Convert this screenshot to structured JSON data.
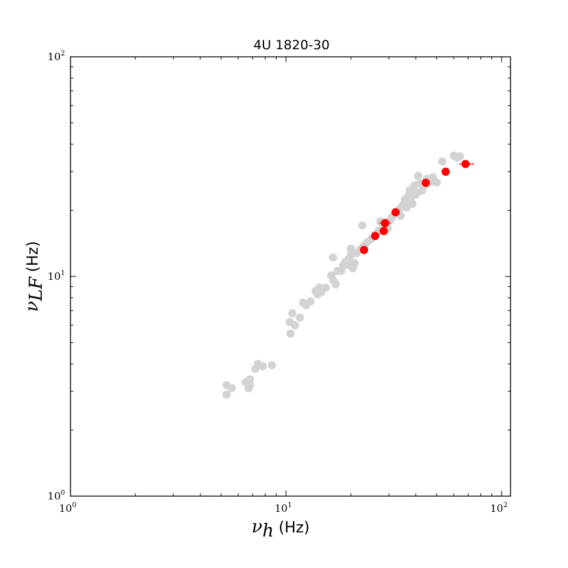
{
  "chart_data": {
    "type": "scatter",
    "title": "4U 1820-30",
    "xlabel": {
      "symbol": "ν",
      "subscript": "h",
      "unit": "(Hz)"
    },
    "ylabel": {
      "symbol": "ν",
      "subscript": "LF",
      "unit": "(Hz)"
    },
    "xscale": "log",
    "yscale": "log",
    "xlim": [
      1,
      110
    ],
    "ylim": [
      1,
      100
    ],
    "grid": false,
    "xticks": [
      {
        "value": 1,
        "base": "10",
        "exp": "0"
      },
      {
        "value": 10,
        "base": "10",
        "exp": "1"
      },
      {
        "value": 100,
        "base": "10",
        "exp": "2"
      }
    ],
    "yticks": [
      {
        "value": 1,
        "base": "10",
        "exp": "0"
      },
      {
        "value": 10,
        "base": "10",
        "exp": "1"
      },
      {
        "value": 100,
        "base": "10",
        "exp": "2"
      }
    ],
    "colors": {
      "background_series": "#d3d3d3",
      "highlight_series": "#ff0000"
    },
    "series": [
      {
        "color": "#d3d3d3",
        "points": [
          [
            5.3,
            3.2
          ],
          [
            5.3,
            2.9
          ],
          [
            5.6,
            3.1
          ],
          [
            6.5,
            3.3
          ],
          [
            6.7,
            3.1
          ],
          [
            6.8,
            3.4
          ],
          [
            6.8,
            3.2
          ],
          [
            7.2,
            3.8
          ],
          [
            7.4,
            4.0
          ],
          [
            7.8,
            3.9
          ],
          [
            8.6,
            3.95
          ],
          [
            10.4,
            6.2
          ],
          [
            10.5,
            5.5
          ],
          [
            10.7,
            6.8
          ],
          [
            11.0,
            6.0
          ],
          [
            11.6,
            6.5
          ],
          [
            12.0,
            7.6
          ],
          [
            12.4,
            7.4
          ],
          [
            13.0,
            7.7
          ],
          [
            13.7,
            8.6
          ],
          [
            14.0,
            8.3
          ],
          [
            14.3,
            8.9
          ],
          [
            14.6,
            8.5
          ],
          [
            15.3,
            8.9
          ],
          [
            16.2,
            10.1
          ],
          [
            16.6,
            9.6
          ],
          [
            17.0,
            9.2
          ],
          [
            17.3,
            10.6
          ],
          [
            16.5,
            12.2
          ],
          [
            18.0,
            10.6
          ],
          [
            18.4,
            11.2
          ],
          [
            18.8,
            11.6
          ],
          [
            19.2,
            11.3
          ],
          [
            19.5,
            12.0
          ],
          [
            20.0,
            12.5
          ],
          [
            20.4,
            10.9
          ],
          [
            20.8,
            11.5
          ],
          [
            20.0,
            13.4
          ],
          [
            21.3,
            12.8
          ],
          [
            22.1,
            13.3
          ],
          [
            23.0,
            13.8
          ],
          [
            22.6,
            17.1
          ],
          [
            23.8,
            14.3
          ],
          [
            24.8,
            14.8
          ],
          [
            25.9,
            15.4
          ],
          [
            26.8,
            16.1
          ],
          [
            27.4,
            17.8
          ],
          [
            28.2,
            17.0
          ],
          [
            29.6,
            16.6
          ],
          [
            30.4,
            18.0
          ],
          [
            31.0,
            18.6
          ],
          [
            32.0,
            19.2
          ],
          [
            33.0,
            19.5
          ],
          [
            33.6,
            20.3
          ],
          [
            34.0,
            18.9
          ],
          [
            35.0,
            21.3
          ],
          [
            35.6,
            22.4
          ],
          [
            36.3,
            20.6
          ],
          [
            37.0,
            23.3
          ],
          [
            37.5,
            24.7
          ],
          [
            38.0,
            22.0
          ],
          [
            38.6,
            21.4
          ],
          [
            39.4,
            26.0
          ],
          [
            40.0,
            23.6
          ],
          [
            40.6,
            24.1
          ],
          [
            41.0,
            28.7
          ],
          [
            41.8,
            26.6
          ],
          [
            42.8,
            24.6
          ],
          [
            44.0,
            26.0
          ],
          [
            45.0,
            27.8
          ],
          [
            46.5,
            26.8
          ],
          [
            48.0,
            28.3
          ],
          [
            50.0,
            26.8
          ],
          [
            53.0,
            33.4
          ],
          [
            60.0,
            35.5
          ],
          [
            62.0,
            34.8
          ],
          [
            64.0,
            35.2
          ]
        ]
      },
      {
        "color": "#ff0000",
        "points": [
          {
            "x": 23.0,
            "y": 13.2
          },
          {
            "x": 25.9,
            "y": 15.3
          },
          {
            "x": 28.4,
            "y": 16.1
          },
          {
            "x": 28.8,
            "y": 17.5,
            "xerr": [
              1.8,
              1.8
            ]
          },
          {
            "x": 32.2,
            "y": 19.6
          },
          {
            "x": 44.5,
            "y": 26.7
          },
          {
            "x": 55.0,
            "y": 30.0
          },
          {
            "x": 68.0,
            "y": 32.5,
            "xerr": [
              4.5,
              6.5
            ]
          }
        ]
      }
    ]
  }
}
